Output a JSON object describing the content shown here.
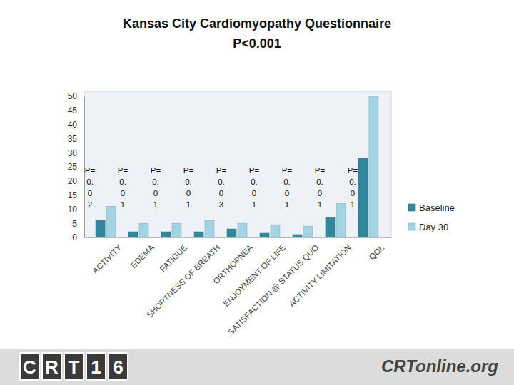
{
  "chart_data": {
    "type": "bar",
    "title": "Kansas City Cardiomyopathy Questionnaire",
    "subtitle": "P<0.001",
    "categories": [
      "ACTIVITY",
      "EDEMA",
      "FATIGUE",
      "SHORTNESS OF BREATH",
      "ORTHOPNEA",
      "ENJOYMENT OF LIFE",
      "SATISFACTION @ STATUS QUO",
      "ACTIVITY LIMITATION",
      "QOL"
    ],
    "series": [
      {
        "name": "Baseline",
        "color": "#31889c",
        "values": [
          6,
          2,
          2,
          2,
          3,
          1.5,
          1,
          7,
          28
        ]
      },
      {
        "name": "Day 30",
        "color": "#a3d4e4",
        "values": [
          11,
          5,
          5,
          6,
          5,
          4.5,
          4,
          12,
          50
        ]
      }
    ],
    "annotations": [
      [
        "P=",
        "0.",
        "0",
        "2"
      ],
      [
        "P=",
        "0.",
        "0",
        "1"
      ],
      [
        "P=",
        "0.",
        "0",
        "1"
      ],
      [
        "P=",
        "0.",
        "0",
        "1"
      ],
      [
        "P=",
        "0.",
        "0",
        "3"
      ],
      [
        "P=",
        "0.",
        "0",
        "1"
      ],
      [
        "P=",
        "0.",
        "0",
        "1"
      ],
      [
        "P=",
        "0.",
        "0",
        "1"
      ],
      [
        "P=",
        "0.",
        "0",
        "1"
      ]
    ],
    "ylim": [
      0,
      50
    ],
    "yticks": [
      0,
      5,
      10,
      15,
      20,
      25,
      30,
      35,
      40,
      45,
      50
    ],
    "grid": false,
    "legend": "right"
  },
  "footer": {
    "left": "CRT16",
    "right": "CRTonline.org"
  }
}
